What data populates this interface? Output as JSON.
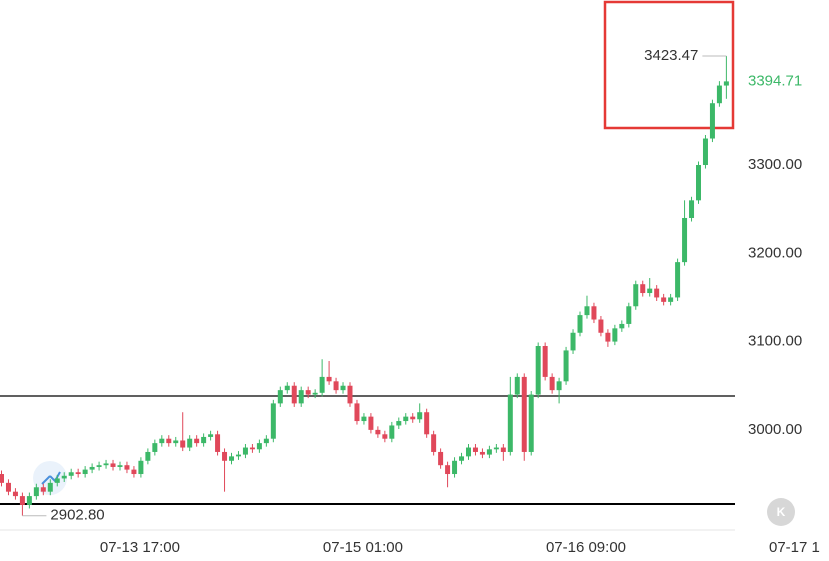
{
  "chart_data": {
    "type": "candlestick",
    "ohlc": [
      [
        2950,
        2954,
        2936,
        2940
      ],
      [
        2940,
        2944,
        2926,
        2930
      ],
      [
        2930,
        2934,
        2921,
        2925
      ],
      [
        2925,
        2929,
        2902.8,
        2915
      ],
      [
        2915,
        2929,
        2911,
        2925
      ],
      [
        2925,
        2939,
        2921,
        2935
      ],
      [
        2935,
        2939,
        2926,
        2930
      ],
      [
        2930,
        2944,
        2926,
        2940
      ],
      [
        2940,
        2949,
        2936,
        2945
      ],
      [
        2945,
        2952,
        2941,
        2948
      ],
      [
        2948,
        2956,
        2944,
        2952
      ],
      [
        2952,
        2956,
        2946,
        2950
      ],
      [
        2950,
        2959,
        2946,
        2955
      ],
      [
        2955,
        2962,
        2951,
        2958
      ],
      [
        2958,
        2964,
        2954,
        2960
      ],
      [
        2960,
        2966,
        2956,
        2962
      ],
      [
        2962,
        2966,
        2954,
        2958
      ],
      [
        2958,
        2964,
        2954,
        2960
      ],
      [
        2960,
        2964,
        2951,
        2955
      ],
      [
        2955,
        2959,
        2946,
        2950
      ],
      [
        2950,
        2969,
        2946,
        2965
      ],
      [
        2965,
        2979,
        2961,
        2975
      ],
      [
        2975,
        2989,
        2971,
        2985
      ],
      [
        2985,
        2994,
        2981,
        2990
      ],
      [
        2990,
        2994,
        2981,
        2985
      ],
      [
        2985,
        2992,
        2981,
        2988
      ],
      [
        2988,
        3020,
        2976,
        2980
      ],
      [
        2980,
        2994,
        2976,
        2990
      ],
      [
        2990,
        2994,
        2981,
        2985
      ],
      [
        2985,
        2996,
        2981,
        2992
      ],
      [
        2992,
        2999,
        2988,
        2995
      ],
      [
        2995,
        2999,
        2971,
        2975
      ],
      [
        2975,
        2979,
        2930,
        2965
      ],
      [
        2965,
        2974,
        2961,
        2970
      ],
      [
        2970,
        2976,
        2966,
        2972
      ],
      [
        2972,
        2984,
        2968,
        2980
      ],
      [
        2980,
        2984,
        2974,
        2978
      ],
      [
        2978,
        2989,
        2974,
        2985
      ],
      [
        2985,
        2994,
        2981,
        2990
      ],
      [
        2990,
        3034,
        2986,
        3030
      ],
      [
        3030,
        3049,
        3026,
        3045
      ],
      [
        3045,
        3054,
        3041,
        3050
      ],
      [
        3050,
        3054,
        3026,
        3030
      ],
      [
        3030,
        3049,
        3026,
        3045
      ],
      [
        3045,
        3049,
        3036,
        3040
      ],
      [
        3040,
        3046,
        3036,
        3042
      ],
      [
        3042,
        3080,
        3038,
        3060
      ],
      [
        3060,
        3078,
        3051,
        3055
      ],
      [
        3055,
        3059,
        3041,
        3045
      ],
      [
        3045,
        3054,
        3041,
        3050
      ],
      [
        3050,
        3054,
        3026,
        3030
      ],
      [
        3030,
        3034,
        3006,
        3010
      ],
      [
        3010,
        3019,
        3006,
        3015
      ],
      [
        3015,
        3019,
        2996,
        3000
      ],
      [
        3000,
        3004,
        2991,
        2995
      ],
      [
        2995,
        2999,
        2986,
        2990
      ],
      [
        2990,
        3009,
        2986,
        3005
      ],
      [
        3005,
        3014,
        3001,
        3010
      ],
      [
        3010,
        3019,
        3006,
        3015
      ],
      [
        3015,
        3019,
        3008,
        3012
      ],
      [
        3012,
        3030,
        3008,
        3020
      ],
      [
        3020,
        3024,
        2991,
        2995
      ],
      [
        2995,
        2999,
        2971,
        2975
      ],
      [
        2975,
        2979,
        2956,
        2960
      ],
      [
        2960,
        2964,
        2935,
        2950
      ],
      [
        2950,
        2969,
        2946,
        2965
      ],
      [
        2965,
        2974,
        2961,
        2970
      ],
      [
        2970,
        2984,
        2966,
        2980
      ],
      [
        2980,
        2984,
        2971,
        2975
      ],
      [
        2975,
        2979,
        2968,
        2972
      ],
      [
        2972,
        2982,
        2968,
        2978
      ],
      [
        2978,
        2984,
        2974,
        2980
      ],
      [
        2980,
        2984,
        2965,
        2975
      ],
      [
        2975,
        3060,
        2971,
        3040
      ],
      [
        3040,
        3064,
        3036,
        3060
      ],
      [
        3060,
        3064,
        2965,
        2975
      ],
      [
        2975,
        3044,
        2971,
        3040
      ],
      [
        3040,
        3099,
        3036,
        3095
      ],
      [
        3095,
        3099,
        3056,
        3060
      ],
      [
        3060,
        3064,
        3041,
        3045
      ],
      [
        3045,
        3059,
        3030,
        3055
      ],
      [
        3055,
        3094,
        3051,
        3090
      ],
      [
        3090,
        3114,
        3086,
        3110
      ],
      [
        3110,
        3134,
        3106,
        3130
      ],
      [
        3130,
        3152,
        3126,
        3140
      ],
      [
        3140,
        3144,
        3121,
        3125
      ],
      [
        3125,
        3129,
        3106,
        3110
      ],
      [
        3110,
        3114,
        3094,
        3100
      ],
      [
        3100,
        3119,
        3096,
        3115
      ],
      [
        3115,
        3124,
        3111,
        3120
      ],
      [
        3120,
        3144,
        3116,
        3140
      ],
      [
        3140,
        3169,
        3136,
        3165
      ],
      [
        3165,
        3169,
        3151,
        3155
      ],
      [
        3155,
        3172,
        3151,
        3160
      ],
      [
        3160,
        3164,
        3146,
        3150
      ],
      [
        3150,
        3154,
        3141,
        3145
      ],
      [
        3145,
        3154,
        3141,
        3150
      ],
      [
        3150,
        3194,
        3146,
        3190
      ],
      [
        3190,
        3260,
        3186,
        3240
      ],
      [
        3240,
        3264,
        3236,
        3260
      ],
      [
        3260,
        3304,
        3256,
        3300
      ],
      [
        3300,
        3334,
        3296,
        3330
      ],
      [
        3330,
        3374,
        3326,
        3370
      ],
      [
        3370,
        3395,
        3366,
        3390
      ],
      [
        3390,
        3423.47,
        3375,
        3394.71
      ]
    ],
    "up_color": "#3cb868",
    "down_color": "#e0485a",
    "ylim": [
      2886.6,
      3486.9
    ],
    "yticks": [
      {
        "value": 3000,
        "label": "3000.00"
      },
      {
        "value": 3100,
        "label": "3100.00"
      },
      {
        "value": 3200,
        "label": "3200.00"
      },
      {
        "value": 3300,
        "label": "3300.00"
      }
    ],
    "xticks": [
      {
        "value": 21,
        "label": "07-13 17:00"
      },
      {
        "value": 53,
        "label": "07-15 01:00"
      },
      {
        "value": 85,
        "label": "07-16 09:00"
      },
      {
        "value": 117,
        "label": "07-17 1"
      }
    ],
    "hlines": [
      3038.4,
      2916
    ],
    "value_labels": {
      "high": "3423.47",
      "low": "2902.80",
      "last": "3394.71"
    }
  }
}
